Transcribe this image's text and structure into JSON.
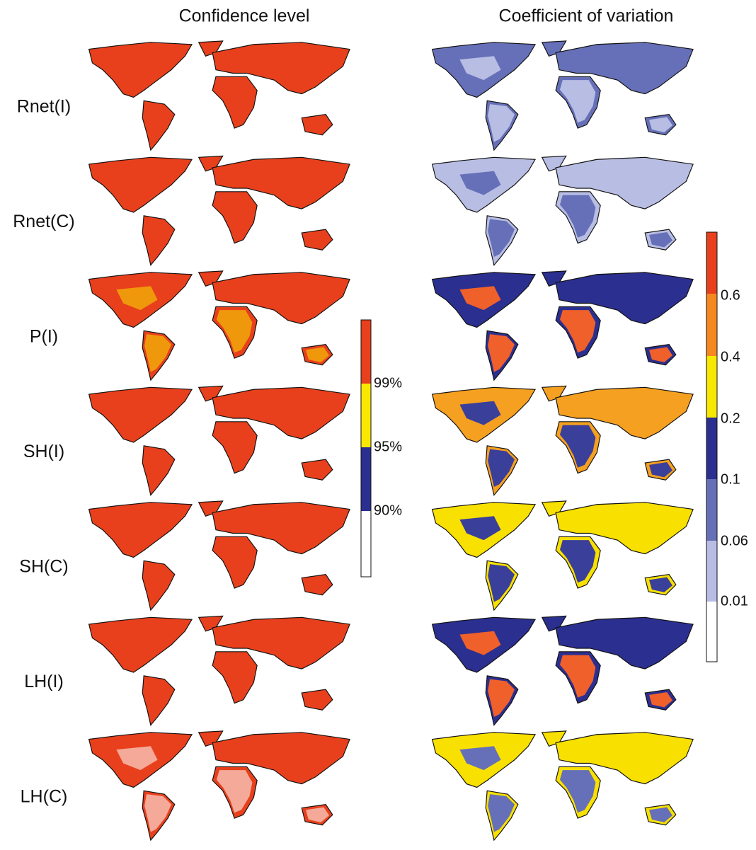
{
  "titles": [
    "Confidence level",
    "Coefficient of variation"
  ],
  "rows": [
    "Rnet(I)",
    "Rnet(C)",
    "P(I)",
    "SH(I)",
    "SH(C)",
    "LH(I)",
    "LH(C)"
  ],
  "colorbars": {
    "confidence": [
      "99%",
      "95%",
      "90%"
    ],
    "variation": [
      "0.6",
      "0.4",
      "0.2",
      "0.1",
      "0.06",
      "0.01"
    ]
  }
}
